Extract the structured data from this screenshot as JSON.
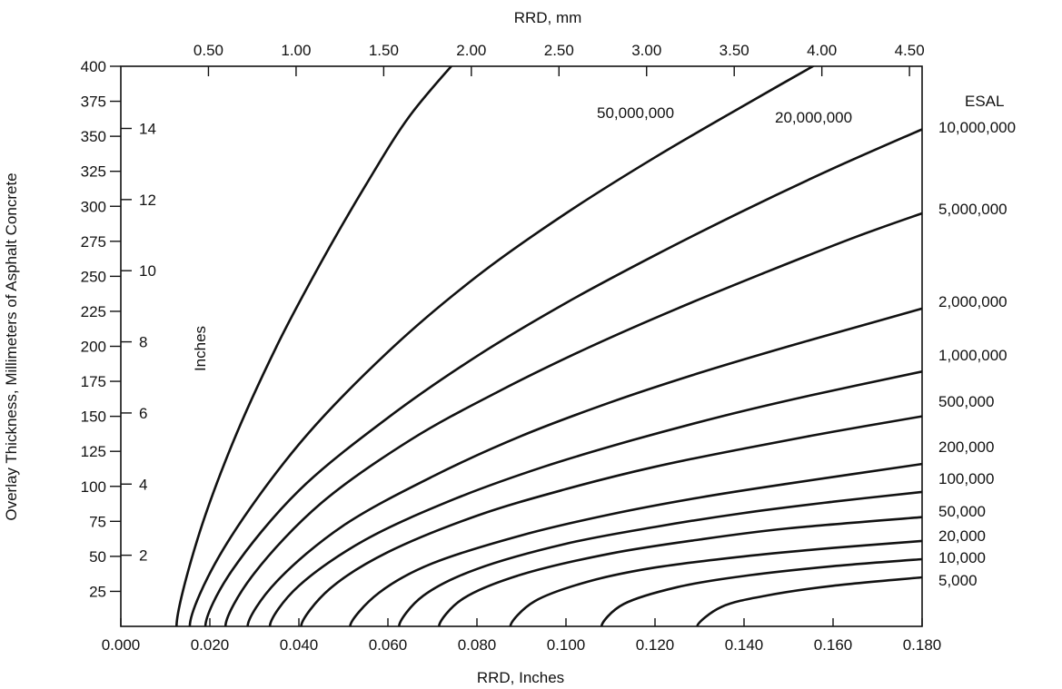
{
  "chart_data": {
    "type": "line",
    "xlabel": "RRD, Inches",
    "ylabel": "Overlay Thickness, Millimeters of Asphalt Concrete",
    "top_axis_label": "RRD, mm",
    "inner_axis_label": "Inches",
    "legend_title": "ESAL",
    "xlim": [
      0.0,
      0.18
    ],
    "ylim": [
      0,
      400
    ],
    "top_xlim_mm": [
      0.0,
      4.572
    ],
    "x_ticks": [
      "0.000",
      "0.020",
      "0.040",
      "0.060",
      "0.080",
      "0.100",
      "0.120",
      "0.140",
      "0.160",
      "0.180"
    ],
    "y_ticks": [
      "25",
      "50",
      "75",
      "100",
      "125",
      "150",
      "175",
      "200",
      "225",
      "250",
      "275",
      "300",
      "325",
      "350",
      "375",
      "400"
    ],
    "top_ticks": [
      "0.50",
      "1.00",
      "1.50",
      "2.00",
      "2.50",
      "3.00",
      "3.50",
      "4.00",
      "4.50"
    ],
    "inch_ticks": [
      "2",
      "4",
      "6",
      "8",
      "10",
      "12",
      "14"
    ],
    "grid": false,
    "series": [
      {
        "name": "50,000,000",
        "x": [
          0.0125,
          0.017,
          0.025,
          0.035,
          0.045,
          0.055,
          0.065,
          0.077
        ],
        "y": [
          0,
          60,
          130,
          200,
          260,
          315,
          365,
          410
        ]
      },
      {
        "name": "20,000,000",
        "x": [
          0.0155,
          0.023,
          0.04,
          0.06,
          0.08,
          0.1,
          0.12,
          0.14,
          0.161
        ],
        "y": [
          0,
          55,
          130,
          196,
          250,
          295,
          335,
          372,
          410
        ]
      },
      {
        "name": "10,000,000",
        "x": [
          0.019,
          0.025,
          0.04,
          0.06,
          0.08,
          0.1,
          0.12,
          0.14,
          0.16,
          0.18
        ],
        "y": [
          0,
          40,
          97,
          149,
          193,
          231,
          265,
          297,
          327,
          355
        ]
      },
      {
        "name": "5,000,000",
        "x": [
          0.0235,
          0.03,
          0.045,
          0.065,
          0.085,
          0.105,
          0.125,
          0.145,
          0.165,
          0.18
        ],
        "y": [
          0,
          38,
          88,
          133,
          168,
          199,
          227,
          253,
          278,
          295
        ]
      },
      {
        "name": "2,000,000",
        "x": [
          0.0285,
          0.035,
          0.05,
          0.07,
          0.09,
          0.11,
          0.13,
          0.15,
          0.17,
          0.18
        ],
        "y": [
          0,
          32,
          72,
          107,
          136,
          160,
          181,
          200,
          218,
          227
        ]
      },
      {
        "name": "1,000,000",
        "x": [
          0.0335,
          0.04,
          0.055,
          0.075,
          0.095,
          0.115,
          0.135,
          0.155,
          0.18
        ],
        "y": [
          0,
          29,
          62,
          91,
          114,
          133,
          150,
          165,
          182
        ]
      },
      {
        "name": "500,000",
        "x": [
          0.0405,
          0.047,
          0.06,
          0.08,
          0.1,
          0.12,
          0.14,
          0.16,
          0.18
        ],
        "y": [
          0,
          27,
          53,
          79,
          98,
          114,
          127,
          139,
          150
        ]
      },
      {
        "name": "200,000",
        "x": [
          0.0515,
          0.058,
          0.07,
          0.09,
          0.11,
          0.13,
          0.15,
          0.18
        ],
        "y": [
          0,
          24,
          45,
          65,
          80,
          92,
          102,
          116
        ]
      },
      {
        "name": "100,000",
        "x": [
          0.0625,
          0.068,
          0.08,
          0.1,
          0.12,
          0.14,
          0.16,
          0.18
        ],
        "y": [
          0,
          22,
          41,
          59,
          71,
          81,
          89,
          96
        ]
      },
      {
        "name": "50,000",
        "x": [
          0.0715,
          0.077,
          0.09,
          0.11,
          0.13,
          0.15,
          0.18
        ],
        "y": [
          0,
          20,
          37,
          52,
          62,
          70,
          78
        ]
      },
      {
        "name": "20,000",
        "x": [
          0.0875,
          0.093,
          0.105,
          0.12,
          0.14,
          0.16,
          0.18
        ],
        "y": [
          0,
          18,
          32,
          42,
          50,
          56,
          61
        ]
      },
      {
        "name": "10,000",
        "x": [
          0.108,
          0.113,
          0.125,
          0.14,
          0.16,
          0.18
        ],
        "y": [
          0,
          16,
          28,
          36,
          43,
          48
        ]
      },
      {
        "name": "5,000",
        "x": [
          0.1295,
          0.135,
          0.145,
          0.16,
          0.18
        ],
        "y": [
          0,
          14,
          22,
          29,
          35
        ]
      }
    ]
  }
}
